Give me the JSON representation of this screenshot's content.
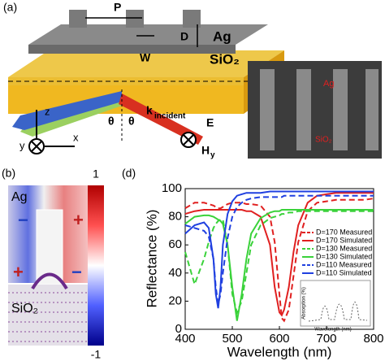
{
  "panel_a": {
    "label": "(a)",
    "period": "P",
    "depth": "D",
    "metal": "Ag",
    "width": "W",
    "substrate": "SiO₂",
    "axis_z": "z",
    "axis_y": "y",
    "axis_x": "x",
    "theta_left": "θ",
    "theta_right": "θ",
    "k": "k",
    "k_sub": "incident",
    "e_field": "E",
    "h_field": "H",
    "h_sub": "y",
    "sem_metal": "Ag",
    "sem_substrate": "SiO₂"
  },
  "panel_b": {
    "label": "(b)",
    "metal": "Ag",
    "substrate": "SiO₂",
    "colorbar_max": "1",
    "colorbar_min": "-1",
    "signs": [
      "−",
      "+",
      "+",
      "−"
    ]
  },
  "chart_data": {
    "type": "line",
    "panel_label": "(d)",
    "x_label": "Wavelength (nm)",
    "y_label": "Reflectance (%)",
    "x": [
      400,
      420,
      440,
      450,
      460,
      465,
      470,
      475,
      480,
      490,
      500,
      510,
      520,
      530,
      540,
      560,
      580,
      590,
      600,
      605,
      610,
      620,
      630,
      640,
      660,
      680,
      700,
      720,
      740,
      760,
      780,
      800
    ],
    "series": [
      {
        "name": "D=170 Measured",
        "color": "#e02020",
        "dashed": true,
        "values": [
          86,
          90,
          90,
          89,
          88,
          87,
          86,
          86,
          87,
          89,
          90,
          90,
          90,
          89,
          89,
          88,
          80,
          62,
          25,
          8,
          6,
          14,
          38,
          62,
          84,
          90,
          91,
          92,
          92,
          92,
          92,
          93
        ]
      },
      {
        "name": "D=170 Simulated",
        "color": "#e02020",
        "dashed": false,
        "values": [
          82,
          84,
          85,
          85,
          85,
          85,
          85,
          85,
          85,
          85,
          85,
          85,
          85,
          84,
          84,
          80,
          60,
          30,
          12,
          10,
          14,
          30,
          55,
          74,
          90,
          95,
          96,
          97,
          97,
          97,
          97,
          97
        ]
      },
      {
        "name": "D=130 Measured",
        "color": "#3ad23a",
        "dashed": true,
        "values": [
          55,
          32,
          50,
          62,
          72,
          75,
          77,
          78,
          78,
          60,
          25,
          12,
          20,
          40,
          60,
          74,
          79,
          80,
          81,
          82,
          82,
          83,
          83,
          84,
          84,
          84,
          84,
          84,
          84,
          84,
          84,
          84
        ]
      },
      {
        "name": "D=130 Simulated",
        "color": "#3ad23a",
        "dashed": false,
        "values": [
          75,
          80,
          81,
          81,
          80,
          79,
          78,
          77,
          75,
          60,
          30,
          6,
          25,
          50,
          68,
          79,
          83,
          84,
          84,
          85,
          85,
          85,
          85,
          85,
          85,
          85,
          85,
          85,
          85,
          85,
          85,
          85
        ]
      },
      {
        "name": "D=110 Measured",
        "color": "#2040e0",
        "dashed": true,
        "values": [
          74,
          72,
          70,
          66,
          50,
          30,
          18,
          25,
          40,
          65,
          80,
          87,
          90,
          92,
          93,
          94,
          94,
          94,
          94,
          94,
          95,
          95,
          95,
          95,
          95,
          95,
          95,
          95,
          95,
          95,
          95,
          95
        ]
      },
      {
        "name": "D=110 Simulated",
        "color": "#2040e0",
        "dashed": false,
        "values": [
          68,
          74,
          76,
          72,
          50,
          25,
          15,
          30,
          60,
          82,
          91,
          95,
          96,
          97,
          97,
          97,
          98,
          98,
          98,
          98,
          98,
          98,
          98,
          98,
          98,
          98,
          98,
          98,
          98,
          98,
          98,
          98
        ]
      }
    ],
    "inset_x_label": "Wavelength (nm)",
    "inset_y_label": "Absorption (%)",
    "xlim": [
      400,
      800
    ],
    "ylim": [
      0,
      100
    ],
    "xticks": [
      400,
      500,
      600,
      700,
      800
    ],
    "yticks": [
      0,
      20,
      40,
      60,
      80,
      100
    ],
    "legend": "right",
    "grid": false
  }
}
